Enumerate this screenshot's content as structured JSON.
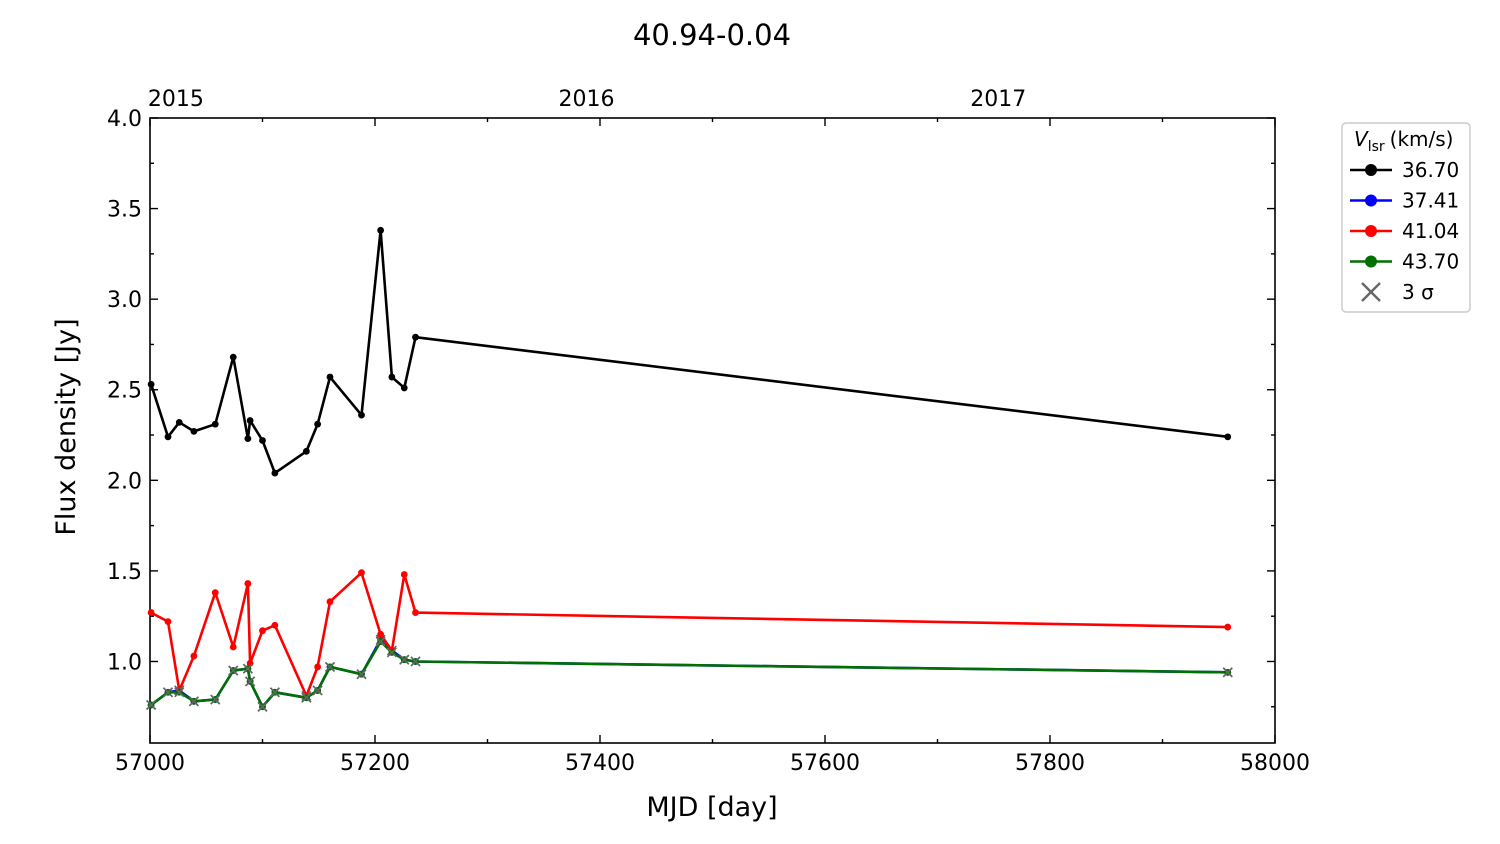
{
  "chart_data": {
    "type": "line",
    "title": "40.94-0.04",
    "xlabel": "MJD [day]",
    "ylabel": "Flux density [Jy]",
    "xlim": [
      57000,
      58000
    ],
    "ylim": [
      0.55,
      4.0
    ],
    "xticks": [
      57000,
      57200,
      57400,
      57600,
      57800,
      58000
    ],
    "xtick_labels": [
      "57000",
      "57200",
      "57400",
      "57600",
      "57800",
      "58000"
    ],
    "yticks": [
      1.0,
      1.5,
      2.0,
      2.5,
      3.0,
      3.5,
      4.0
    ],
    "ytick_labels": [
      "1.0",
      "1.5",
      "2.0",
      "2.5",
      "3.0",
      "3.5",
      "4.0"
    ],
    "top_axis": {
      "ticks": [
        57023,
        57388,
        57754
      ],
      "labels": [
        "2015",
        "2016",
        "2017"
      ]
    },
    "grid": false,
    "legend": {
      "title_main": "V",
      "title_sub": "lsr",
      "title_unit": "(km/s)",
      "placement": "outside-right-top",
      "sigma_symbol": "×",
      "sigma_label": "3 σ"
    },
    "series": [
      {
        "name": "36.70",
        "color": "#000000",
        "x": [
          57001,
          57016,
          57026,
          57039,
          57058,
          57074,
          57087,
          57089,
          57100,
          57111,
          57139,
          57149,
          57160,
          57188,
          57205,
          57215,
          57226,
          57236,
          57958
        ],
        "y": [
          2.53,
          2.24,
          2.32,
          2.27,
          2.31,
          2.68,
          2.23,
          2.33,
          2.22,
          2.04,
          2.16,
          2.31,
          2.57,
          2.36,
          3.38,
          2.57,
          2.51,
          2.79,
          2.24
        ],
        "sigma": []
      },
      {
        "name": "37.41",
        "color": "#0000ff",
        "x": [
          57001,
          57016,
          57026,
          57039,
          57058,
          57074,
          57087,
          57089,
          57100,
          57111,
          57139,
          57149,
          57160,
          57188,
          57205,
          57215,
          57226,
          57236,
          57958
        ],
        "y": [
          0.76,
          0.83,
          0.84,
          0.78,
          0.79,
          0.95,
          0.96,
          0.89,
          0.75,
          0.83,
          0.8,
          0.84,
          0.97,
          0.93,
          1.12,
          1.06,
          1.01,
          1.0,
          0.94
        ],
        "sigma": [
          true,
          true,
          true,
          true,
          true,
          true,
          true,
          true,
          true,
          true,
          true,
          true,
          true,
          true,
          true,
          true,
          true,
          true,
          true
        ]
      },
      {
        "name": "41.04",
        "color": "#ff0000",
        "x": [
          57001,
          57016,
          57026,
          57039,
          57058,
          57074,
          57087,
          57089,
          57100,
          57111,
          57139,
          57149,
          57160,
          57188,
          57205,
          57215,
          57226,
          57236,
          57958
        ],
        "y": [
          1.27,
          1.22,
          0.84,
          1.03,
          1.38,
          1.08,
          1.43,
          0.99,
          1.17,
          1.2,
          0.81,
          0.97,
          1.33,
          1.49,
          1.15,
          1.06,
          1.48,
          1.27,
          1.19
        ],
        "sigma": [
          false,
          false,
          true,
          false,
          false,
          false,
          false,
          false,
          false,
          false,
          true,
          false,
          false,
          false,
          false,
          false,
          false,
          false,
          false
        ]
      },
      {
        "name": "43.70",
        "color": "#007000",
        "x": [
          57001,
          57016,
          57026,
          57039,
          57058,
          57074,
          57087,
          57089,
          57100,
          57111,
          57139,
          57149,
          57160,
          57188,
          57205,
          57215,
          57226,
          57236,
          57958
        ],
        "y": [
          0.76,
          0.83,
          0.83,
          0.78,
          0.79,
          0.95,
          0.96,
          0.89,
          0.75,
          0.83,
          0.8,
          0.84,
          0.97,
          0.93,
          1.11,
          1.05,
          1.01,
          1.0,
          0.94
        ],
        "sigma": [
          true,
          true,
          true,
          true,
          true,
          true,
          true,
          true,
          true,
          true,
          true,
          true,
          true,
          true,
          true,
          true,
          true,
          true,
          true
        ]
      }
    ]
  }
}
